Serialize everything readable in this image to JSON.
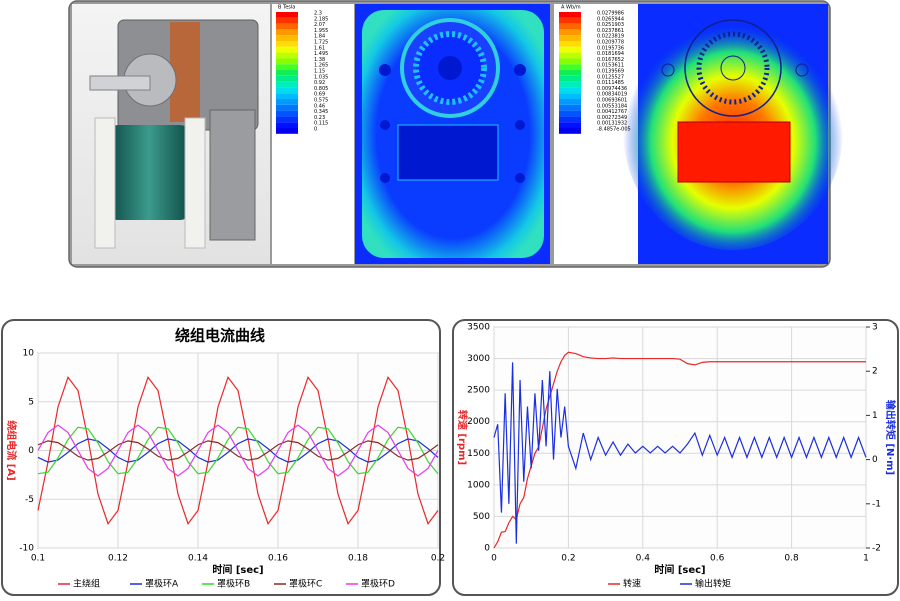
{
  "field_plots": [
    {
      "title": "B Tesla",
      "labels": [
        "2.3",
        "2.185",
        "2.07",
        "1.955",
        "1.84",
        "1.725",
        "1.61",
        "1.495",
        "1.38",
        "1.265",
        "1.15",
        "1.035",
        "0.92",
        "0.805",
        "0.69",
        "0.575",
        "0.46",
        "0.345",
        "0.23",
        "0.115",
        "0"
      ]
    },
    {
      "title": "A Wb/m",
      "labels": [
        "0.0279986",
        "0.0265944",
        "0.0251903",
        "0.0237861",
        "0.0223819",
        "0.0209778",
        "0.0195736",
        "0.0181694",
        "0.0167652",
        "0.0153611",
        "0.0139569",
        "0.0125527",
        "0.0111485",
        "0.00974436",
        "0.00834019",
        "0.00693601",
        "0.00553184",
        "0.00412767",
        "0.00272349",
        "0.00131932",
        "-8.4857e-005"
      ]
    }
  ],
  "chart_data": [
    {
      "type": "line",
      "title": "绕组电流曲线",
      "xlabel": "时间 [sec]",
      "ylabel": "绕组电流 [A]",
      "x": [
        0.1,
        0.1025,
        0.105,
        0.1075,
        0.11,
        0.1125,
        0.115,
        0.1175,
        0.12,
        0.1225,
        0.125,
        0.1275,
        0.13,
        0.1325,
        0.135,
        0.1375,
        0.14,
        0.1425,
        0.145,
        0.1475,
        0.15,
        0.1525,
        0.155,
        0.1575,
        0.16,
        0.1625,
        0.165,
        0.1675,
        0.17,
        0.1725,
        0.175,
        0.1775,
        0.18,
        0.1825,
        0.185,
        0.1875,
        0.19,
        0.1925,
        0.195,
        0.1975,
        0.2
      ],
      "xlim": [
        0.1,
        0.2
      ],
      "xticks": [
        0.1,
        0.12,
        0.14,
        0.16,
        0.18,
        0.2
      ],
      "ylim": [
        -10,
        10
      ],
      "yticks": [
        -10,
        -5,
        0,
        5,
        10
      ],
      "grid": true,
      "series": [
        {
          "name": "主绕组",
          "color": "#e8282a",
          "values": [
            -6.15,
            -1.19,
            4.47,
            7.51,
            6.15,
            1.19,
            -4.47,
            -7.51,
            -6.15,
            -1.19,
            4.47,
            7.51,
            6.15,
            1.19,
            -4.47,
            -7.51,
            -6.15,
            -1.19,
            4.47,
            7.51,
            6.15,
            1.19,
            -4.47,
            -7.51,
            -6.15,
            -1.19,
            4.47,
            7.51,
            6.15,
            1.19,
            -4.47,
            -7.51,
            -6.15,
            -1.19,
            4.47,
            7.51,
            6.15,
            1.19,
            -4.47,
            -7.51,
            -6.15
          ]
        },
        {
          "name": "罩极环A",
          "color": "#1c2fe0",
          "values": [
            -0.71,
            -1.19,
            -0.97,
            -0.19,
            0.71,
            1.19,
            0.97,
            0.19,
            -0.71,
            -1.19,
            -0.97,
            -0.19,
            0.71,
            1.19,
            0.97,
            0.19,
            -0.71,
            -1.19,
            -0.97,
            -0.19,
            0.71,
            1.19,
            0.97,
            0.19,
            -0.71,
            -1.19,
            -0.97,
            -0.19,
            0.71,
            1.19,
            0.97,
            0.19,
            -0.71,
            -1.19,
            -0.97,
            -0.19,
            0.71,
            1.19,
            0.97,
            0.19,
            -0.71
          ]
        },
        {
          "name": "罩极环B",
          "color": "#3ad62a",
          "values": [
            -2.38,
            -2.23,
            -0.77,
            1.13,
            2.38,
            2.23,
            0.77,
            -1.13,
            -2.38,
            -2.23,
            -0.77,
            1.13,
            2.38,
            2.23,
            0.77,
            -1.13,
            -2.38,
            -2.23,
            -0.77,
            1.13,
            2.38,
            2.23,
            0.77,
            -1.13,
            -2.38,
            -2.23,
            -0.77,
            1.13,
            2.38,
            2.23,
            0.77,
            -1.13,
            -2.38,
            -2.23,
            -0.77,
            1.13,
            2.38,
            2.23,
            0.77,
            -1.13,
            -2.38
          ]
        },
        {
          "name": "罩极环C",
          "color": "#8b2a1a",
          "values": [
            0.59,
            0.99,
            0.81,
            0.16,
            -0.59,
            -0.99,
            -0.81,
            -0.16,
            0.59,
            0.99,
            0.81,
            0.16,
            -0.59,
            -0.99,
            -0.81,
            -0.16,
            0.59,
            0.99,
            0.81,
            0.16,
            -0.59,
            -0.99,
            -0.81,
            -0.16,
            0.59,
            0.99,
            0.81,
            0.16,
            -0.59,
            -0.99,
            -0.81,
            -0.16,
            0.59,
            0.99,
            0.81,
            0.16,
            -0.59,
            -0.99,
            -0.81,
            -0.16,
            0.59
          ]
        },
        {
          "name": "罩极环D",
          "color": "#e63ae6",
          "values": [
            0,
            1.84,
            2.6,
            1.84,
            0,
            -1.84,
            -2.6,
            -1.84,
            0,
            1.84,
            2.6,
            1.84,
            0,
            -1.84,
            -2.6,
            -1.84,
            0,
            1.84,
            2.6,
            1.84,
            0,
            -1.84,
            -2.6,
            -1.84,
            0,
            1.84,
            2.6,
            1.84,
            0,
            -1.84,
            -2.6,
            -1.84,
            0,
            1.84,
            2.6,
            1.84,
            0,
            -1.84,
            -2.6,
            -1.84,
            0
          ]
        }
      ]
    },
    {
      "type": "line",
      "xlabel": "时间 [sec]",
      "ylabel": "转速 [rpm]",
      "y2label": "输出转矩 [N·m]",
      "x": [
        0,
        0.01,
        0.02,
        0.03,
        0.04,
        0.05,
        0.06,
        0.07,
        0.08,
        0.09,
        0.1,
        0.11,
        0.12,
        0.13,
        0.14,
        0.15,
        0.16,
        0.17,
        0.18,
        0.19,
        0.2,
        0.22,
        0.24,
        0.26,
        0.28,
        0.3,
        0.32,
        0.34,
        0.36,
        0.38,
        0.4,
        0.42,
        0.44,
        0.46,
        0.48,
        0.5,
        0.52,
        0.54,
        0.56,
        0.58,
        0.6,
        0.62,
        0.64,
        0.66,
        0.68,
        0.7,
        0.72,
        0.74,
        0.76,
        0.78,
        0.8,
        0.82,
        0.84,
        0.86,
        0.88,
        0.9,
        0.92,
        0.94,
        0.96,
        0.98,
        1
      ],
      "xlim": [
        0,
        1
      ],
      "xticks": [
        0,
        0.2,
        0.4,
        0.6,
        0.8,
        1
      ],
      "ylim": [
        0,
        3500
      ],
      "yticks": [
        0,
        500,
        1000,
        1500,
        2000,
        2500,
        3000,
        3500
      ],
      "y2lim": [
        -2,
        3
      ],
      "y2ticks": [
        -2,
        -1,
        0,
        1,
        2,
        3
      ],
      "grid": true,
      "series": [
        {
          "name": "转速",
          "color": "#e8282a",
          "values": [
            0,
            100,
            250,
            260,
            400,
            500,
            450,
            700,
            800,
            1100,
            1300,
            1500,
            1600,
            1900,
            2200,
            2400,
            2600,
            2800,
            2950,
            3050,
            3100,
            3080,
            3030,
            3010,
            3000,
            3000,
            3010,
            3000,
            3000,
            3000,
            3000,
            3000,
            3000,
            3000,
            3000,
            2990,
            2920,
            2900,
            2940,
            2950,
            2950,
            2950,
            2950,
            2950,
            2950,
            2950,
            2950,
            2950,
            2950,
            2950,
            2950,
            2950,
            2950,
            2950,
            2950,
            2950,
            2950,
            2950,
            2950,
            2950,
            2950
          ]
        },
        {
          "name": "输出转矩",
          "color": "#1c2fe0",
          "axis": "y2",
          "values": [
            0.5,
            0.8,
            -1.2,
            1.5,
            -1.0,
            2.2,
            -1.9,
            1.8,
            -0.5,
            1.2,
            -0.2,
            1.5,
            0.2,
            1.8,
            0.3,
            2.0,
            0.0,
            1.6,
            0.5,
            1.2,
            0.3,
            -0.2,
            0.6,
            0.0,
            0.5,
            0.1,
            0.4,
            0.1,
            0.35,
            0.15,
            0.3,
            0.15,
            0.3,
            0.15,
            0.3,
            0.15,
            0.35,
            0.6,
            0.1,
            0.55,
            0.1,
            0.5,
            0.05,
            0.5,
            0.05,
            0.5,
            0.05,
            0.5,
            0.05,
            0.5,
            0.05,
            0.5,
            0.05,
            0.5,
            0.05,
            0.5,
            0.05,
            0.5,
            0.05,
            0.5,
            0.05
          ]
        }
      ]
    }
  ]
}
